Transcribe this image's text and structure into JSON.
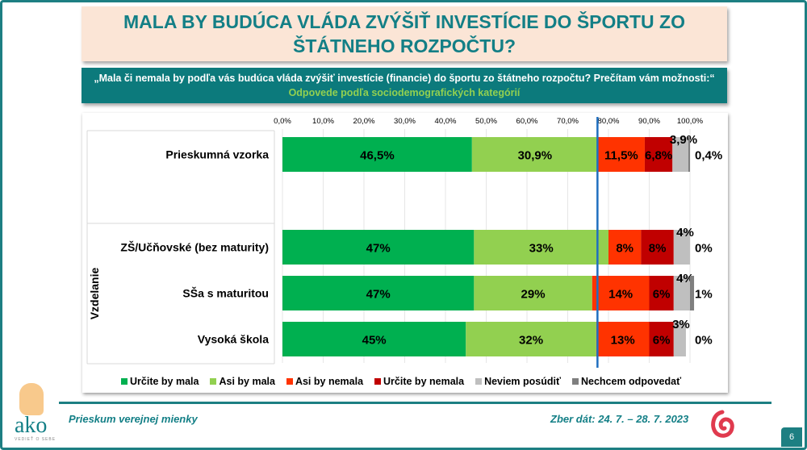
{
  "title": "MALA BY BUDÚCA VLÁDA ZVÝŠIŤ INVESTÍCIE DO ŠPORTU ZO ŠTÁTNEHO ROZPOČTU?",
  "question": "„Mala či nemala by podľa vás budúca vláda zvýšiť investície (financie) do športu zo štátneho rozpočtu? Prečítam vám možnosti:“",
  "subtitle": "Odpovede podľa sociodemografických kategórií",
  "chart_data": {
    "type": "bar",
    "orientation": "horizontal-stacked-100",
    "x_ticks": [
      "0,0%",
      "10,0%",
      "20,0%",
      "30,0%",
      "40,0%",
      "50,0%",
      "60,0%",
      "70,0%",
      "80,0%",
      "90,0%",
      "100,0%"
    ],
    "xlim": [
      0,
      100
    ],
    "grid": true,
    "reference_line": 77.3,
    "group_label": "Vzdelanie",
    "categories": [
      "Prieskumná vzorka",
      "ZŠ/Učňovské (bez maturity)",
      "SŠa s maturitou",
      "Vysoká škola"
    ],
    "series": [
      {
        "name": "Určite by mala",
        "color": "#00b050",
        "values": [
          46.5,
          47,
          47,
          45
        ],
        "labels": [
          "46,5%",
          "47%",
          "47%",
          "45%"
        ]
      },
      {
        "name": "Asi by mala",
        "color": "#92d050",
        "values": [
          30.9,
          33,
          29,
          32
        ],
        "labels": [
          "30,9%",
          "33%",
          "29%",
          "32%"
        ]
      },
      {
        "name": "Asi by nemala",
        "color": "#ff3300",
        "values": [
          11.5,
          8,
          14,
          13
        ],
        "labels": [
          "11,5%",
          "8%",
          "14%",
          "13%"
        ]
      },
      {
        "name": "Určite by nemala",
        "color": "#c00000",
        "values": [
          6.8,
          8,
          6,
          6
        ],
        "labels": [
          "6,8%",
          "8%",
          "6%",
          "6%"
        ]
      },
      {
        "name": "Neviem posúdiť",
        "color": "#bfbfbf",
        "values": [
          3.9,
          4,
          4,
          3
        ],
        "labels": [
          "3,9%",
          "4%",
          "4%",
          "3%"
        ]
      },
      {
        "name": "Nechcem odpovedať",
        "color": "#7f7f7f",
        "values": [
          0.4,
          0,
          1,
          0
        ],
        "labels": [
          "0,4%",
          "0%",
          "1%",
          "0%"
        ]
      }
    ],
    "legend": "bottom"
  },
  "footer": {
    "left": "Prieskum verejnej mienky",
    "right": "Zber dát: 24. 7. – 28. 7. 2023",
    "page": "6"
  },
  "logo": {
    "text": "ako",
    "tagline": "VEDIEŤ O SEBE"
  }
}
